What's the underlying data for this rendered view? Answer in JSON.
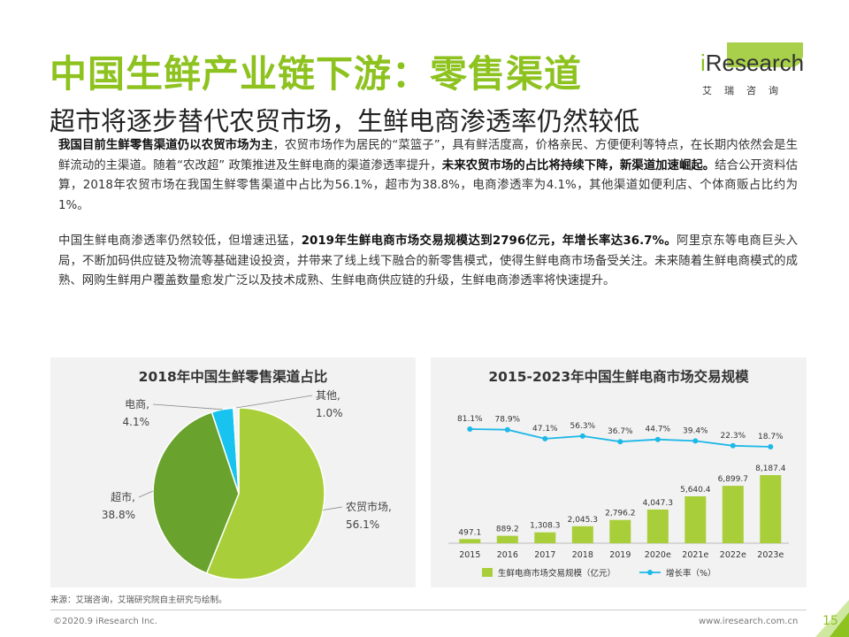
{
  "header": {
    "title": "中国生鲜产业链下游：零售渠道",
    "subtitle": "超市将逐步替代农贸市场，生鲜电商渗透率仍然较低"
  },
  "logo": {
    "word_i": "i",
    "word_rest": "Research",
    "cn": "艾瑞咨询"
  },
  "paragraphs": {
    "p1": {
      "b1": "我国目前生鲜零售渠道仍以农贸市场为主",
      "t1": "，农贸市场作为居民的“菜篮子”，具有鲜活度高，价格亲民、方便便利等特点，在长期内依然会是生鲜流动的主渠道。随着“农改超” 政策推进及生鲜电商的渠道渗透率提升，",
      "b2": "未来农贸市场的占比将持续下降，新渠道加速崛起。",
      "t2": "结合公开资料估算，2018年农贸市场在我国生鲜零售渠道中占比为56.1%，超市为38.8%，电商渗透率为4.1%，其他渠道如便利店、个体商贩占比约为1%。"
    },
    "p2": {
      "t1": "中国生鲜电商渗透率仍然较低，但增速迅猛，",
      "b1": "2019年生鲜电商市场交易规模达到2796亿元，年增长率达36.7%。",
      "t2": "阿里京东等电商巨头入局，不断加码供应链及物流等基础建设投资，并带来了线上线下融合的新零售模式，使得生鲜电商市场备受关注。未来随着生鲜电商模式的成熟、网购生鲜用户覆盖数量愈发广泛以及技术成熟、生鲜电商供应链的升级，生鲜电商渗透率将快速提升。"
    }
  },
  "chart_data": [
    {
      "type": "pie",
      "title": "2018年中国生鲜零售渠道占比",
      "slices": [
        {
          "name": "农贸市场,",
          "value": 56.1,
          "label": "56.1%",
          "color": "#a8cf3a"
        },
        {
          "name": "超市,",
          "value": 38.8,
          "label": "38.8%",
          "color": "#6aa22e"
        },
        {
          "name": "电商,",
          "value": 4.1,
          "label": "4.1%",
          "color": "#18c3ef"
        },
        {
          "name": "其他,",
          "value": 1.0,
          "label": "1.0%",
          "color": "#f4f4f4"
        }
      ]
    },
    {
      "type": "bar+line",
      "title": "2015-2023年中国生鲜电商市场交易规模",
      "categories": [
        "2015",
        "2016",
        "2017",
        "2018",
        "2019",
        "2020e",
        "2021e",
        "2022e",
        "2023e"
      ],
      "series": [
        {
          "name": "生鲜电商市场交易规模（亿元）",
          "type": "bar",
          "color": "#a8cf3a",
          "values": [
            497.1,
            889.2,
            1308.3,
            2045.3,
            2796.2,
            4047.3,
            5640.4,
            6899.7,
            8187.4
          ],
          "labels": [
            "497.1",
            "889.2",
            "1,308.3",
            "2,045.3",
            "2,796.2",
            "4,047.3",
            "5,640.4",
            "6,899.7",
            "8,187.4"
          ]
        },
        {
          "name": "增长率（%）",
          "type": "line",
          "color": "#1cb8e8",
          "values": [
            81.1,
            78.9,
            47.1,
            56.3,
            36.7,
            44.7,
            39.4,
            22.3,
            18.7
          ],
          "labels": [
            "81.1%",
            "78.9%",
            "47.1%",
            "56.3%",
            "36.7%",
            "44.7%",
            "39.4%",
            "22.3%",
            "18.7%"
          ]
        }
      ]
    }
  ],
  "footer": {
    "source": "来源：艾瑞咨询，艾瑞研究院自主研究与绘制。",
    "copyright": "©2020.9 iResearch Inc.",
    "website": "www.iresearch.com.cn",
    "page": "15"
  }
}
